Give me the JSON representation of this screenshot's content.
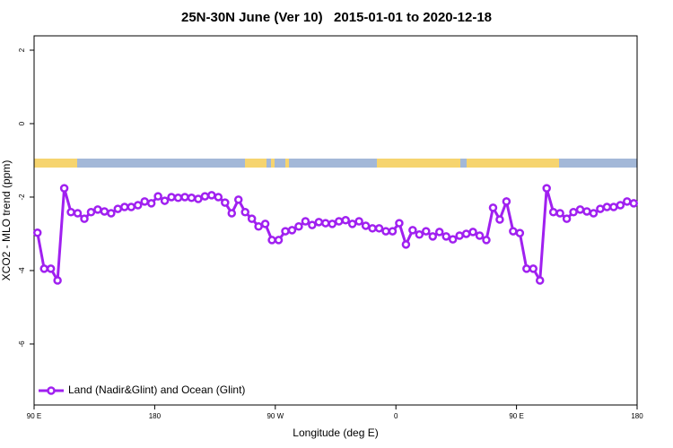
{
  "chart_data": {
    "type": "line",
    "title": "25N-30N June (Ver 10)   2015-01-01 to 2020-12-18",
    "xlabel": "Longitude (deg E)",
    "ylabel": "XCO2 - MLO trend (ppm)",
    "xlim": [
      90,
      540
    ],
    "ylim": [
      -7.66,
      2.39
    ],
    "xticks": [
      {
        "value": 90,
        "label": "90 E"
      },
      180,
      {
        "value": 270,
        "label": "90 W"
      },
      {
        "value": 360,
        "label": "0"
      },
      {
        "value": 450,
        "label": "90 E"
      },
      {
        "value": 540,
        "label": "180"
      }
    ],
    "yticks": [
      -6,
      -4,
      -2,
      0,
      2
    ],
    "legend": "bottom-left",
    "x": [
      92.5,
      97.5,
      102.5,
      107.5,
      112.5,
      117.5,
      122.5,
      127.5,
      132.5,
      137.5,
      142.5,
      147.5,
      152.5,
      157.5,
      162.5,
      167.5,
      172.5,
      177.5,
      182.5,
      187.5,
      192.5,
      197.5,
      202.5,
      207.5,
      212.5,
      217.5,
      222.5,
      227.5,
      232.5,
      237.5,
      242.5,
      247.5,
      252.5,
      257.5,
      262.5,
      267.5,
      272.5,
      277.5,
      282.5,
      287.5,
      292.5,
      297.5,
      302.5,
      307.5,
      312.5,
      317.5,
      322.5,
      327.5,
      332.5,
      337.5,
      342.5,
      347.5,
      352.5,
      357.5,
      362.5,
      367.5,
      372.5,
      377.5,
      382.5,
      387.5,
      392.5,
      397.5,
      402.5,
      407.5,
      412.5,
      417.5,
      422.5,
      427.5,
      432.5,
      437.5,
      442.5,
      447.5,
      452.5,
      457.5,
      462.5,
      467.5,
      472.5,
      477.5,
      482.5,
      487.5,
      492.5,
      497.5,
      502.5,
      507.5,
      512.5,
      517.5,
      522.5,
      527.5,
      532.5,
      537.5
    ],
    "series": [
      {
        "name": "Land (Nadir&Glint) and Ocean (Glint)",
        "color": "#a020f0",
        "values": [
          -2.97,
          -3.95,
          -3.95,
          -4.27,
          -1.76,
          -2.41,
          -2.44,
          -2.59,
          -2.41,
          -2.34,
          -2.39,
          -2.44,
          -2.32,
          -2.27,
          -2.27,
          -2.22,
          -2.12,
          -2.17,
          -1.98,
          -2.1,
          -2.0,
          -2.02,
          -2.0,
          -2.02,
          -2.05,
          -1.98,
          -1.95,
          -2.0,
          -2.15,
          -2.44,
          -2.07,
          -2.41,
          -2.59,
          -2.8,
          -2.73,
          -3.17,
          -3.17,
          -2.93,
          -2.9,
          -2.8,
          -2.66,
          -2.76,
          -2.68,
          -2.71,
          -2.73,
          -2.66,
          -2.63,
          -2.73,
          -2.66,
          -2.78,
          -2.85,
          -2.85,
          -2.93,
          -2.93,
          -2.71,
          -3.29,
          -2.9,
          -3.02,
          -2.93,
          -3.07,
          -2.95,
          -3.07,
          -3.15,
          -3.05,
          -3.0,
          -2.95,
          -3.05,
          -3.17,
          -2.29,
          -2.61,
          -2.12,
          -2.93,
          -2.98,
          -3.95,
          -3.95,
          -4.27,
          -1.76,
          -2.41,
          -2.44,
          -2.59,
          -2.41,
          -2.34,
          -2.39,
          -2.44,
          -2.32,
          -2.27,
          -2.27,
          -2.22,
          -2.12,
          -2.17
        ]
      }
    ]
  }
}
